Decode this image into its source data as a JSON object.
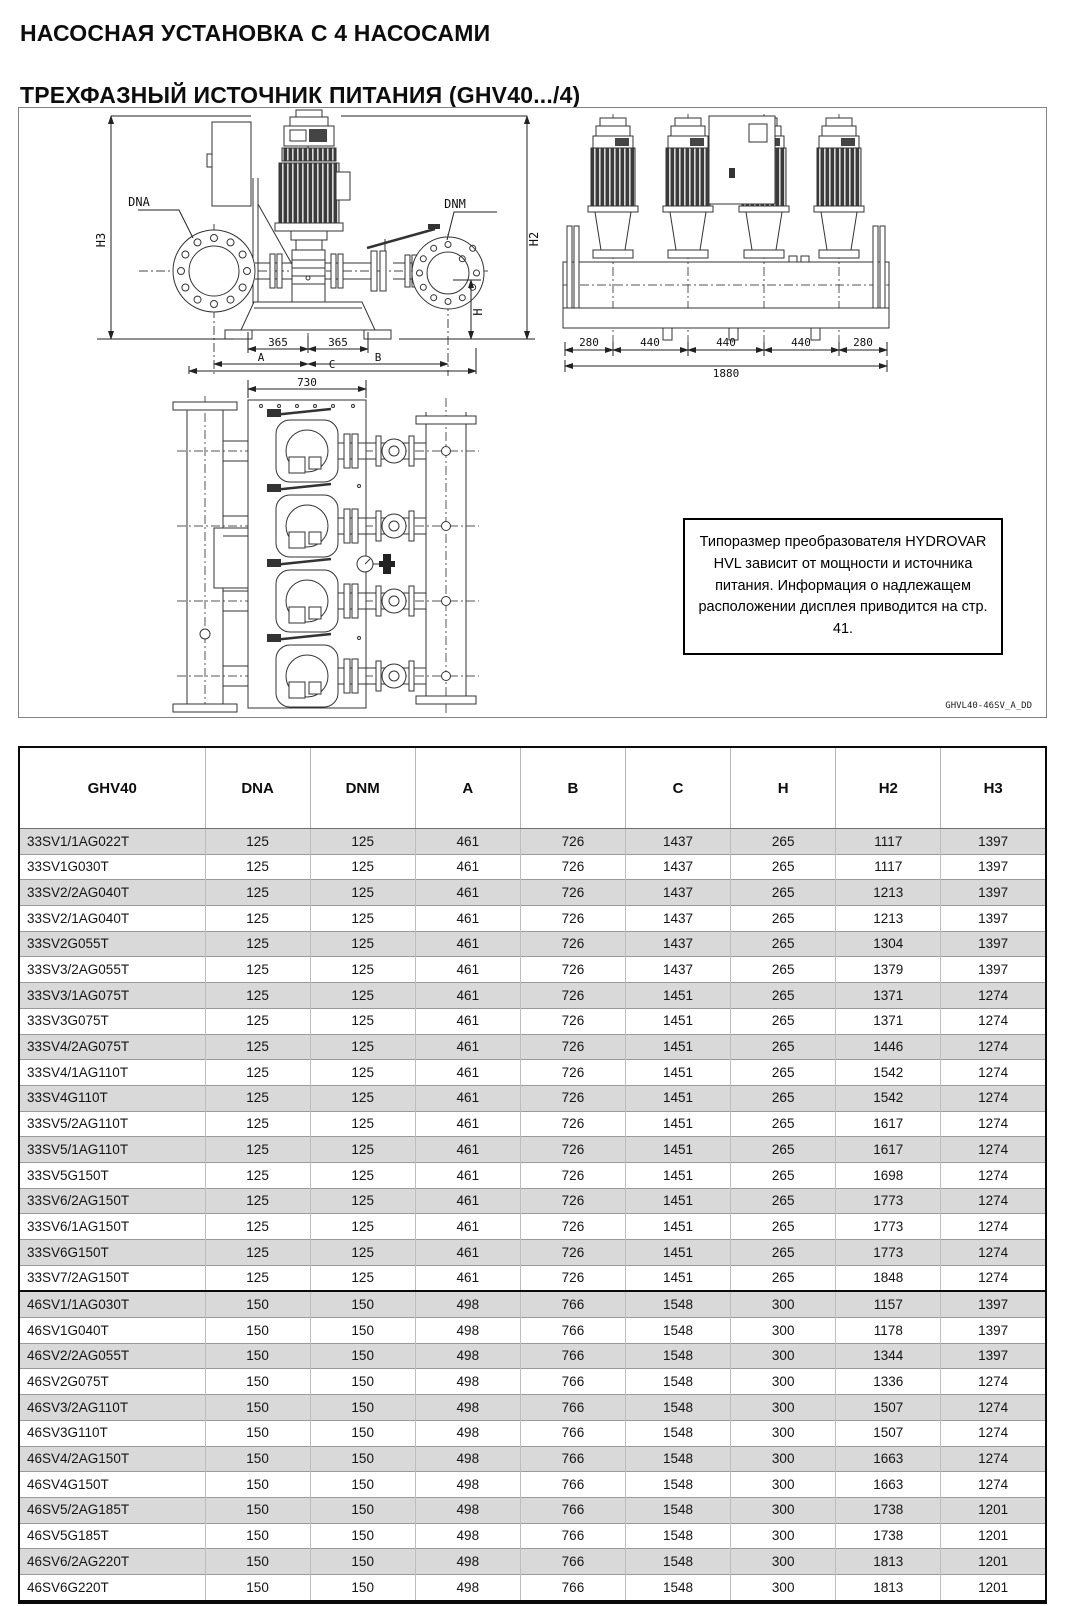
{
  "page": {
    "title_line1": "НАСОСНАЯ УСТАНОВКА С 4 НАСОСАМИ",
    "title_line2": "ТРЕХФАЗНЫЙ ИСТОЧНИК ПИТАНИЯ (GHV40.../4)"
  },
  "figure": {
    "front_view": {
      "dna_label": "DNA",
      "dnm_label": "DNM",
      "h3_label": "H3",
      "h2_label": "H2",
      "h_label": "H",
      "dim_365_left": "365",
      "dim_365_right": "365",
      "dim_a": "A",
      "dim_b": "B",
      "dim_c": "C"
    },
    "side_view": {
      "dims": [
        "280",
        "440",
        "440",
        "440",
        "280"
      ],
      "total_dim": "1880"
    },
    "plan_view": {
      "frame_width_dim": "730"
    },
    "note_box": {
      "text": "Типоразмер преобразователя HYDROVAR HVL зависит от мощности и источника питания. Информация о надлежащем расположении дисплея приводится на стр. 41."
    },
    "drawing_code": "GHVL40-46SV_A_DD"
  },
  "table": {
    "col_headers": [
      "GHV40",
      "DNA",
      "DNM",
      "A",
      "B",
      "C",
      "H",
      "H2",
      "H3"
    ],
    "section_start_indices": [
      18
    ],
    "rows": [
      [
        "33SV1/1AG022T",
        "125",
        "125",
        "461",
        "726",
        "1437",
        "265",
        "1117",
        "1397"
      ],
      [
        "33SV1G030T",
        "125",
        "125",
        "461",
        "726",
        "1437",
        "265",
        "1117",
        "1397"
      ],
      [
        "33SV2/2AG040T",
        "125",
        "125",
        "461",
        "726",
        "1437",
        "265",
        "1213",
        "1397"
      ],
      [
        "33SV2/1AG040T",
        "125",
        "125",
        "461",
        "726",
        "1437",
        "265",
        "1213",
        "1397"
      ],
      [
        "33SV2G055T",
        "125",
        "125",
        "461",
        "726",
        "1437",
        "265",
        "1304",
        "1397"
      ],
      [
        "33SV3/2AG055T",
        "125",
        "125",
        "461",
        "726",
        "1437",
        "265",
        "1379",
        "1397"
      ],
      [
        "33SV3/1AG075T",
        "125",
        "125",
        "461",
        "726",
        "1451",
        "265",
        "1371",
        "1274"
      ],
      [
        "33SV3G075T",
        "125",
        "125",
        "461",
        "726",
        "1451",
        "265",
        "1371",
        "1274"
      ],
      [
        "33SV4/2AG075T",
        "125",
        "125",
        "461",
        "726",
        "1451",
        "265",
        "1446",
        "1274"
      ],
      [
        "33SV4/1AG110T",
        "125",
        "125",
        "461",
        "726",
        "1451",
        "265",
        "1542",
        "1274"
      ],
      [
        "33SV4G110T",
        "125",
        "125",
        "461",
        "726",
        "1451",
        "265",
        "1542",
        "1274"
      ],
      [
        "33SV5/2AG110T",
        "125",
        "125",
        "461",
        "726",
        "1451",
        "265",
        "1617",
        "1274"
      ],
      [
        "33SV5/1AG110T",
        "125",
        "125",
        "461",
        "726",
        "1451",
        "265",
        "1617",
        "1274"
      ],
      [
        "33SV5G150T",
        "125",
        "125",
        "461",
        "726",
        "1451",
        "265",
        "1698",
        "1274"
      ],
      [
        "33SV6/2AG150T",
        "125",
        "125",
        "461",
        "726",
        "1451",
        "265",
        "1773",
        "1274"
      ],
      [
        "33SV6/1AG150T",
        "125",
        "125",
        "461",
        "726",
        "1451",
        "265",
        "1773",
        "1274"
      ],
      [
        "33SV6G150T",
        "125",
        "125",
        "461",
        "726",
        "1451",
        "265",
        "1773",
        "1274"
      ],
      [
        "33SV7/2AG150T",
        "125",
        "125",
        "461",
        "726",
        "1451",
        "265",
        "1848",
        "1274"
      ],
      [
        "46SV1/1AG030T",
        "150",
        "150",
        "498",
        "766",
        "1548",
        "300",
        "1157",
        "1397"
      ],
      [
        "46SV1G040T",
        "150",
        "150",
        "498",
        "766",
        "1548",
        "300",
        "1178",
        "1397"
      ],
      [
        "46SV2/2AG055T",
        "150",
        "150",
        "498",
        "766",
        "1548",
        "300",
        "1344",
        "1397"
      ],
      [
        "46SV2G075T",
        "150",
        "150",
        "498",
        "766",
        "1548",
        "300",
        "1336",
        "1274"
      ],
      [
        "46SV3/2AG110T",
        "150",
        "150",
        "498",
        "766",
        "1548",
        "300",
        "1507",
        "1274"
      ],
      [
        "46SV3G110T",
        "150",
        "150",
        "498",
        "766",
        "1548",
        "300",
        "1507",
        "1274"
      ],
      [
        "46SV4/2AG150T",
        "150",
        "150",
        "498",
        "766",
        "1548",
        "300",
        "1663",
        "1274"
      ],
      [
        "46SV4G150T",
        "150",
        "150",
        "498",
        "766",
        "1548",
        "300",
        "1663",
        "1274"
      ],
      [
        "46SV5/2AG185T",
        "150",
        "150",
        "498",
        "766",
        "1548",
        "300",
        "1738",
        "1201"
      ],
      [
        "46SV5G185T",
        "150",
        "150",
        "498",
        "766",
        "1548",
        "300",
        "1738",
        "1201"
      ],
      [
        "46SV6/2AG220T",
        "150",
        "150",
        "498",
        "766",
        "1548",
        "300",
        "1813",
        "1201"
      ],
      [
        "46SV6G220T",
        "150",
        "150",
        "498",
        "766",
        "1548",
        "300",
        "1813",
        "1201"
      ]
    ]
  },
  "colors": {
    "shaded_row": "#d9d9d9",
    "table_border": "#0a0a0a",
    "drawing_line": "#333333"
  }
}
